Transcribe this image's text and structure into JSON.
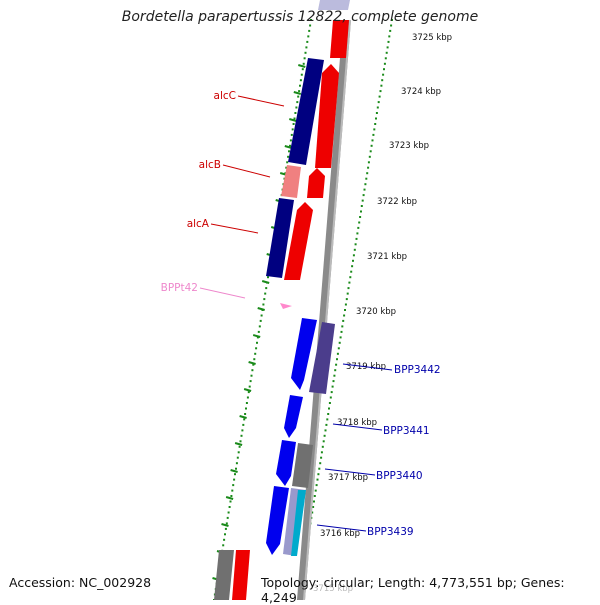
{
  "map": {
    "title": "Bordetella parapertussis 12822, complete genome",
    "accession": "Accession: NC_002928",
    "topology": "Topology: circular; Length: 4,773,551 bp; Genes: 4,249"
  },
  "ruler": [
    {
      "label": "3725 kbp",
      "kbp": 3725
    },
    {
      "label": "3724 kbp",
      "kbp": 3724
    },
    {
      "label": "3723 kbp",
      "kbp": 3723
    },
    {
      "label": "3722 kbp",
      "kbp": 3722
    },
    {
      "label": "3721 kbp",
      "kbp": 3721
    },
    {
      "label": "3720 kbp",
      "kbp": 3720
    },
    {
      "label": "3719 kbp",
      "kbp": 3719
    },
    {
      "label": "3718 kbp",
      "kbp": 3718
    },
    {
      "label": "3717 kbp",
      "kbp": 3717
    },
    {
      "label": "3716 kbp",
      "kbp": 3716
    },
    {
      "label": "3715 kbp",
      "kbp": 3715
    }
  ],
  "gene_labels": [
    {
      "label": "alcC",
      "color": "#cc0000"
    },
    {
      "label": "alcB",
      "color": "#cc0000"
    },
    {
      "label": "alcA",
      "color": "#cc0000"
    },
    {
      "label": "BPPt42",
      "color": "#ee88cc"
    },
    {
      "label": "BPP3442",
      "color": "#0000aa"
    },
    {
      "label": "BPP3441",
      "color": "#0000aa"
    },
    {
      "label": "BPP3440",
      "color": "#0000aa"
    },
    {
      "label": "BPP3439",
      "color": "#0000aa"
    }
  ],
  "colors": {
    "backbone": "#8a8a8a",
    "reverse_cds": "#0000ee",
    "forward_cds": "#ee0000",
    "cog_navy": "#000080",
    "cog_pink": "#f08080",
    "cog_slate": "#4b3d8c",
    "cog_gray": "#707070",
    "trna": "#ff88cc",
    "ticks": "#1a8a1a"
  }
}
